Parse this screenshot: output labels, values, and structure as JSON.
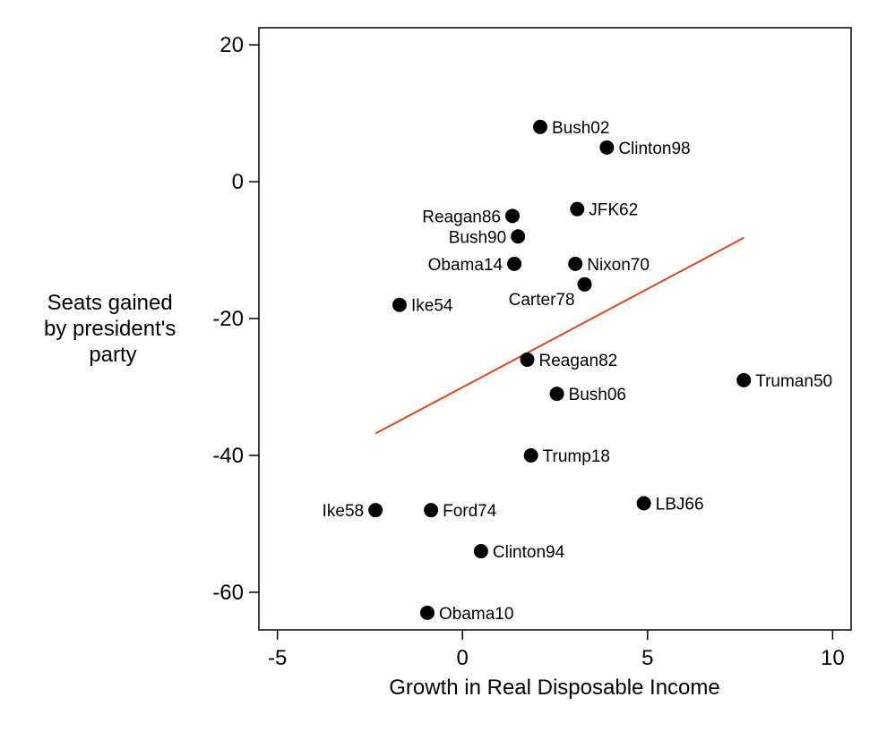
{
  "chart_data": {
    "type": "scatter",
    "xlabel": "Growth in Real Disposable Income",
    "ylabel_lines": [
      "Seats gained",
      "by president's",
      "party"
    ],
    "xlim": [
      -5.5,
      10.5
    ],
    "ylim": [
      -65.5,
      22.5
    ],
    "xticks": [
      -5,
      0,
      5,
      10
    ],
    "yticks": [
      20,
      0,
      -20,
      -40,
      -60
    ],
    "x_tick_labels": [
      "-5",
      "0",
      "5",
      "10"
    ],
    "y_tick_labels": [
      "20",
      "0",
      "-20",
      "-40",
      "-60"
    ],
    "grid": false,
    "legend": "none",
    "points": [
      {
        "label": "Bush02",
        "x": 2.1,
        "y": 8,
        "label_side": "right"
      },
      {
        "label": "Clinton98",
        "x": 3.9,
        "y": 5,
        "label_side": "right"
      },
      {
        "label": "JFK62",
        "x": 3.1,
        "y": -4,
        "label_side": "right"
      },
      {
        "label": "Reagan86",
        "x": 1.35,
        "y": -5,
        "label_side": "left"
      },
      {
        "label": "Bush90",
        "x": 1.5,
        "y": -8,
        "label_side": "left"
      },
      {
        "label": "Obama14",
        "x": 1.4,
        "y": -12,
        "label_side": "left"
      },
      {
        "label": "Nixon70",
        "x": 3.05,
        "y": -12,
        "label_side": "right"
      },
      {
        "label": "Carter78",
        "x": 3.3,
        "y": -15,
        "label_side": "below-left"
      },
      {
        "label": "Ike54",
        "x": -1.7,
        "y": -18,
        "label_side": "right"
      },
      {
        "label": "Reagan82",
        "x": 1.75,
        "y": -26,
        "label_side": "right"
      },
      {
        "label": "Truman50",
        "x": 7.6,
        "y": -29,
        "label_side": "right"
      },
      {
        "label": "Bush06",
        "x": 2.55,
        "y": -31,
        "label_side": "right"
      },
      {
        "label": "Trump18",
        "x": 1.85,
        "y": -40,
        "label_side": "right"
      },
      {
        "label": "LBJ66",
        "x": 4.9,
        "y": -47,
        "label_side": "right"
      },
      {
        "label": "Ike58",
        "x": -2.35,
        "y": -48,
        "label_side": "left"
      },
      {
        "label": "Ford74",
        "x": -0.85,
        "y": -48,
        "label_side": "right"
      },
      {
        "label": "Clinton94",
        "x": 0.5,
        "y": -54,
        "label_side": "right"
      },
      {
        "label": "Obama10",
        "x": -0.95,
        "y": -63,
        "label_side": "right"
      }
    ],
    "fit_line": {
      "x": [
        -2.35,
        7.6
      ],
      "y": [
        -36.8,
        -8.2
      ],
      "color": "#e0461e"
    },
    "marker_color": "#000000"
  }
}
